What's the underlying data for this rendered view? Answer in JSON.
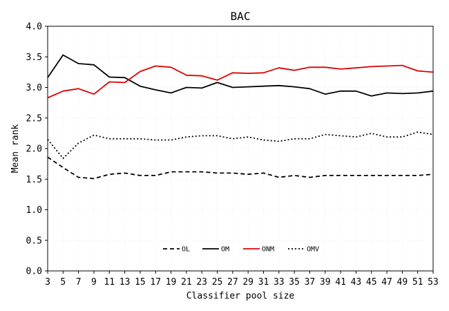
{
  "chart_data": {
    "type": "line",
    "title": "BAC",
    "xlabel": "Classifier pool size",
    "ylabel": "Mean rank",
    "xlim": [
      3,
      53
    ],
    "ylim": [
      0,
      4
    ],
    "x": [
      3,
      5,
      7,
      9,
      11,
      13,
      15,
      17,
      19,
      21,
      23,
      25,
      27,
      29,
      31,
      33,
      35,
      37,
      39,
      41,
      43,
      45,
      47,
      49,
      51,
      53
    ],
    "x_ticks": [
      "3",
      "5",
      "7",
      "9",
      "11",
      "13",
      "15",
      "17",
      "19",
      "21",
      "23",
      "25",
      "27",
      "29",
      "31",
      "33",
      "35",
      "37",
      "39",
      "41",
      "43",
      "45",
      "47",
      "49",
      "51",
      "53"
    ],
    "y_ticks": [
      "0.0",
      "0.5",
      "1.0",
      "1.5",
      "2.0",
      "2.5",
      "3.0",
      "3.5",
      "4.0"
    ],
    "grid": true,
    "legend_position": "bottom-center",
    "series": [
      {
        "name": "OL",
        "color": "#000000",
        "dash": "dashed",
        "values": [
          1.86,
          1.69,
          1.53,
          1.51,
          1.58,
          1.6,
          1.56,
          1.56,
          1.62,
          1.62,
          1.62,
          1.6,
          1.6,
          1.58,
          1.6,
          1.53,
          1.56,
          1.53,
          1.56,
          1.56,
          1.56,
          1.56,
          1.56,
          1.56,
          1.56,
          1.58
        ]
      },
      {
        "name": "OM",
        "color": "#000000",
        "dash": "solid",
        "values": [
          3.16,
          3.53,
          3.39,
          3.37,
          3.17,
          3.16,
          3.02,
          2.96,
          2.91,
          3.0,
          2.99,
          3.08,
          3.0,
          3.01,
          3.02,
          3.03,
          3.01,
          2.98,
          2.89,
          2.94,
          2.94,
          2.86,
          2.91,
          2.9,
          2.91,
          2.94
        ]
      },
      {
        "name": "ONM",
        "color": "#dd0000",
        "dash": "solid",
        "values": [
          2.83,
          2.94,
          2.98,
          2.89,
          3.09,
          3.08,
          3.26,
          3.35,
          3.33,
          3.2,
          3.19,
          3.12,
          3.24,
          3.23,
          3.24,
          3.32,
          3.28,
          3.33,
          3.33,
          3.3,
          3.32,
          3.34,
          3.35,
          3.36,
          3.27,
          3.25
        ]
      },
      {
        "name": "OMV",
        "color": "#000000",
        "dash": "dotted",
        "values": [
          2.15,
          1.84,
          2.09,
          2.22,
          2.16,
          2.16,
          2.16,
          2.14,
          2.14,
          2.19,
          2.21,
          2.21,
          2.16,
          2.19,
          2.14,
          2.12,
          2.16,
          2.16,
          2.23,
          2.21,
          2.19,
          2.25,
          2.19,
          2.19,
          2.27,
          2.23
        ]
      }
    ]
  }
}
